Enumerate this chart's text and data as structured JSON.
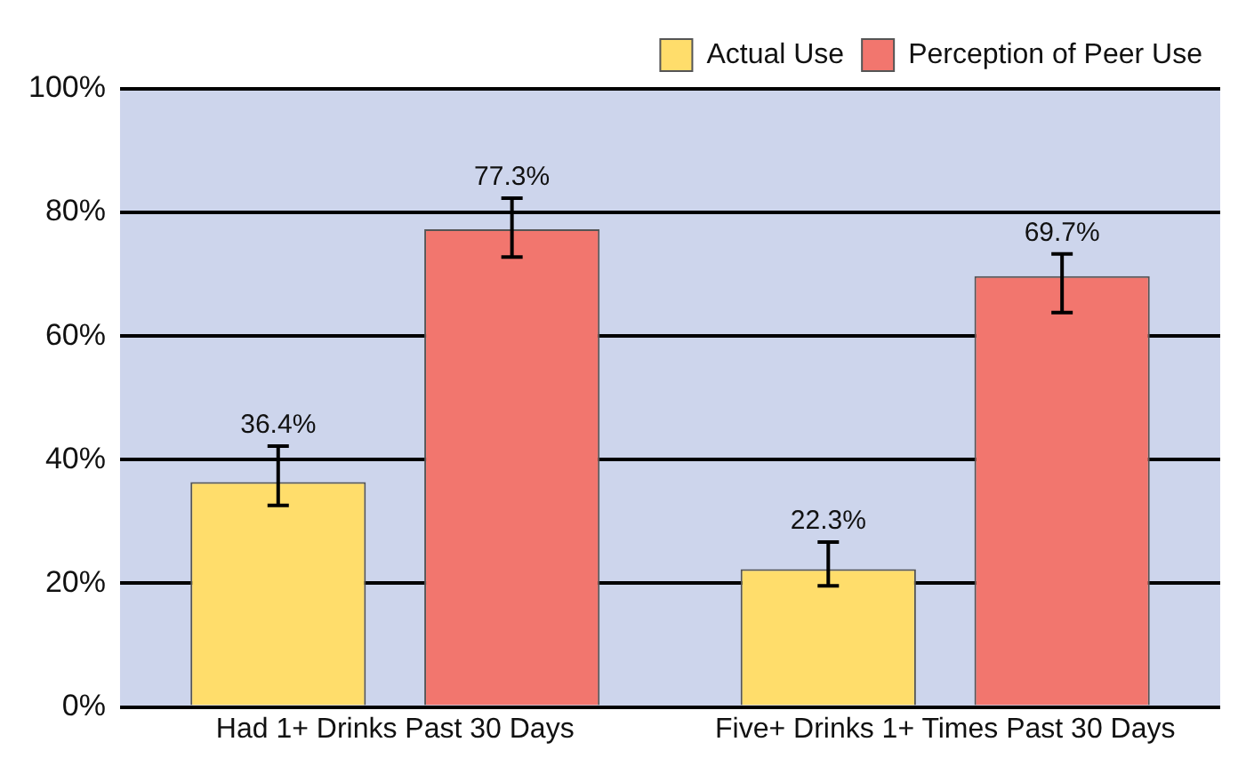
{
  "chart_data": {
    "type": "bar",
    "categories": [
      "Had 1+ Drinks Past 30 Days",
      "Five+ Drinks 1+ Times Past 30 Days"
    ],
    "series": [
      {
        "name": "Actual Use",
        "color": "#ffdd6b",
        "values": [
          36.4,
          22.3
        ],
        "value_labels": [
          "36.4%",
          "22.3%"
        ],
        "errors": [
          [
            32.6,
            42.2
          ],
          [
            19.6,
            26.7
          ]
        ]
      },
      {
        "name": "Perception of Peer Use",
        "color": "#f2766e",
        "values": [
          77.3,
          69.7
        ],
        "value_labels": [
          "77.3%",
          "69.7%"
        ],
        "errors": [
          [
            72.8,
            82.3
          ],
          [
            63.8,
            73.3
          ]
        ]
      }
    ],
    "ylim": [
      0,
      100
    ],
    "yticks": [
      {
        "value": 0,
        "label": "0%"
      },
      {
        "value": 20,
        "label": "20%"
      },
      {
        "value": 40,
        "label": "40%"
      },
      {
        "value": 60,
        "label": "60%"
      },
      {
        "value": 80,
        "label": "80%"
      },
      {
        "value": 100,
        "label": "100%"
      }
    ],
    "grid": "y",
    "legend": "top right"
  }
}
